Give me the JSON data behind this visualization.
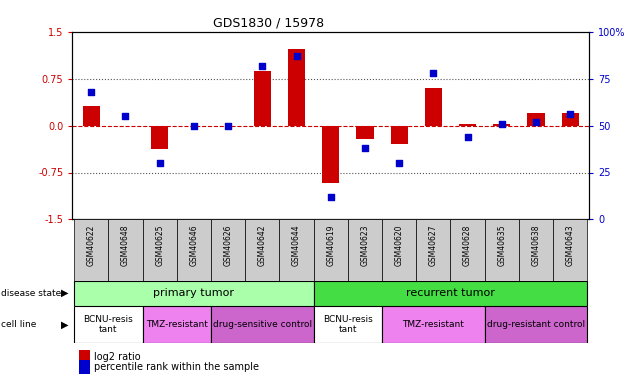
{
  "title": "GDS1830 / 15978",
  "samples": [
    "GSM40622",
    "GSM40648",
    "GSM40625",
    "GSM40646",
    "GSM40626",
    "GSM40642",
    "GSM40644",
    "GSM40619",
    "GSM40623",
    "GSM40620",
    "GSM40627",
    "GSM40628",
    "GSM40635",
    "GSM40638",
    "GSM40643"
  ],
  "log2_ratio": [
    0.32,
    0.0,
    -0.38,
    0.0,
    0.0,
    0.88,
    1.22,
    -0.92,
    -0.22,
    -0.3,
    0.6,
    0.02,
    0.02,
    0.2,
    0.2
  ],
  "percentile": [
    68,
    55,
    30,
    50,
    50,
    82,
    87,
    12,
    38,
    30,
    78,
    44,
    51,
    52,
    56
  ],
  "ylim_left": [
    -1.5,
    1.5
  ],
  "ylim_right": [
    0,
    100
  ],
  "yticks_left": [
    -1.5,
    -0.75,
    0.0,
    0.75,
    1.5
  ],
  "yticks_right": [
    0,
    25,
    50,
    75,
    100
  ],
  "disease_state_groups": [
    {
      "label": "primary tumor",
      "start": 0,
      "end": 7,
      "color": "#aaffaa"
    },
    {
      "label": "recurrent tumor",
      "start": 7,
      "end": 15,
      "color": "#44dd44"
    }
  ],
  "cell_line_groups": [
    {
      "label": "BCNU-resis\ntant",
      "start": 0,
      "end": 2,
      "color": "#ffffff"
    },
    {
      "label": "TMZ-resistant",
      "start": 2,
      "end": 4,
      "color": "#ee82ee"
    },
    {
      "label": "drug-sensitive control",
      "start": 4,
      "end": 7,
      "color": "#cc66cc"
    },
    {
      "label": "BCNU-resis\ntant",
      "start": 7,
      "end": 9,
      "color": "#ffffff"
    },
    {
      "label": "TMZ-resistant",
      "start": 9,
      "end": 12,
      "color": "#ee82ee"
    },
    {
      "label": "drug-resistant control",
      "start": 12,
      "end": 15,
      "color": "#cc66cc"
    }
  ],
  "bar_color": "#cc0000",
  "dot_color": "#0000cc",
  "bar_width": 0.5,
  "dot_size": 25,
  "grid_color": "#555555",
  "axis_color_left": "#cc0000",
  "axis_color_right": "#0000cc",
  "sample_box_color": "#cccccc",
  "fig_width": 6.3,
  "fig_height": 3.75,
  "dpi": 100
}
